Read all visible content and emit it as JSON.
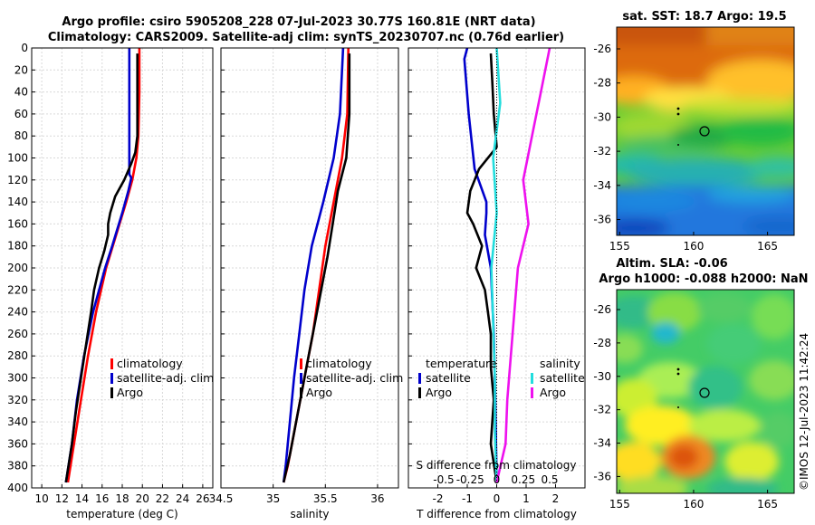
{
  "figure": {
    "title_line1": "Argo profile: csiro 5905208_228 07-Jul-2023 30.77S 160.81E (NRT data)",
    "title_line2": "Climatology: CARS2009. Satellite-adj clim: synTS_20230707.nc (0.76d earlier)",
    "watermark": "©IMOS 12-Jul-2023 11:42:24"
  },
  "colors": {
    "climatology": "#ff0000",
    "satellite": "#0000cc",
    "argo": "#000000",
    "sat_salinity": "#22dddd",
    "salinity_argo": "#ee11ee"
  },
  "chart_data": [
    {
      "type": "line",
      "name": "temperature",
      "xlabel": "temperature (deg C)",
      "xlim": [
        9,
        27
      ],
      "ylim": [
        0,
        400
      ],
      "xticks": [
        "10",
        "12",
        "14",
        "16",
        "18",
        "20",
        "22",
        "24",
        "26"
      ],
      "yticks": [
        "0",
        "20",
        "40",
        "60",
        "80",
        "100",
        "120",
        "140",
        "160",
        "180",
        "200",
        "220",
        "240",
        "260",
        "280",
        "300",
        "320",
        "340",
        "360",
        "380",
        "400"
      ],
      "legend": [
        "climatology",
        "satellite-adj. clim",
        "Argo"
      ],
      "series": [
        {
          "name": "climatology",
          "depth": [
            0,
            40,
            80,
            100,
            120,
            140,
            170,
            200,
            240,
            280,
            320,
            360,
            395
          ],
          "values": [
            19.7,
            19.7,
            19.6,
            19.4,
            19.0,
            18.4,
            17.4,
            16.4,
            15.4,
            14.6,
            13.9,
            13.2,
            12.6
          ]
        },
        {
          "name": "satellite-adj. clim",
          "depth": [
            0,
            115,
            118,
            130,
            150,
            180,
            200,
            240,
            280,
            320,
            360,
            395
          ],
          "values": [
            18.7,
            18.7,
            18.9,
            18.6,
            18.0,
            17.0,
            16.3,
            15.1,
            14.2,
            13.5,
            13.0,
            12.4
          ]
        },
        {
          "name": "Argo",
          "depth": [
            5,
            80,
            95,
            105,
            120,
            135,
            150,
            160,
            170,
            185,
            200,
            220,
            240,
            270,
            300,
            330,
            360,
            395
          ],
          "values": [
            19.5,
            19.5,
            19.3,
            18.9,
            18.2,
            17.3,
            16.8,
            16.6,
            16.6,
            16.2,
            15.7,
            15.2,
            14.9,
            14.4,
            13.9,
            13.4,
            13.0,
            12.4
          ]
        }
      ]
    },
    {
      "type": "line",
      "name": "salinity",
      "xlabel": "salinity",
      "xlim": [
        34.5,
        36.2
      ],
      "ylim": [
        0,
        400
      ],
      "xticks": [
        "34.5",
        "35",
        "35.5",
        "36"
      ],
      "legend": [
        "climatology",
        "satellite-adj. clim",
        "Argo"
      ],
      "series": [
        {
          "name": "climatology",
          "depth": [
            0,
            60,
            100,
            140,
            180,
            220,
            260,
            300,
            340,
            380,
            395
          ],
          "values": [
            35.72,
            35.71,
            35.66,
            35.58,
            35.5,
            35.44,
            35.38,
            35.3,
            35.22,
            35.14,
            35.1
          ]
        },
        {
          "name": "satellite-adj. clim",
          "depth": [
            0,
            60,
            100,
            140,
            180,
            220,
            260,
            300,
            340,
            380,
            395
          ],
          "values": [
            35.67,
            35.64,
            35.58,
            35.48,
            35.37,
            35.3,
            35.25,
            35.2,
            35.16,
            35.12,
            35.1
          ]
        },
        {
          "name": "Argo",
          "depth": [
            5,
            60,
            100,
            130,
            160,
            190,
            220,
            250,
            280,
            310,
            340,
            370,
            395
          ],
          "values": [
            35.73,
            35.73,
            35.7,
            35.62,
            35.57,
            35.52,
            35.46,
            35.4,
            35.34,
            35.28,
            35.22,
            35.16,
            35.1
          ]
        }
      ]
    },
    {
      "type": "line",
      "name": "difference",
      "xlabel": "T difference from climatology",
      "xlabel_top": "S difference from climatology",
      "xlim": [
        -3,
        3
      ],
      "ylim": [
        0,
        400
      ],
      "xticks": [
        "-2",
        "-1",
        "0",
        "1",
        "2"
      ],
      "xticks_top": [
        "-0.5",
        "-0.25",
        "0",
        "0.25",
        "0.5"
      ],
      "legend_headers": [
        "temperature",
        "salinity"
      ],
      "legend_temperature": [
        "satellite",
        "Argo"
      ],
      "legend_salinity": [
        "satellite",
        "Argo"
      ],
      "series": [
        {
          "name": "temperature satellite",
          "depth": [
            0,
            10,
            60,
            110,
            140,
            150,
            170,
            200,
            260,
            320,
            395
          ],
          "values": [
            -1.0,
            -1.1,
            -0.95,
            -0.75,
            -0.35,
            -0.35,
            -0.4,
            -0.2,
            -0.1,
            -0.05,
            0.0
          ]
        },
        {
          "name": "temperature Argo",
          "depth": [
            5,
            30,
            60,
            90,
            110,
            130,
            150,
            160,
            180,
            200,
            220,
            240,
            260,
            290,
            320,
            360,
            395
          ],
          "values": [
            -0.2,
            -0.15,
            -0.1,
            0.0,
            -0.6,
            -0.9,
            -1.0,
            -0.8,
            -0.5,
            -0.7,
            -0.4,
            -0.3,
            -0.2,
            -0.2,
            -0.1,
            -0.2,
            0.0
          ]
        },
        {
          "name": "salinity satellite",
          "depth": [
            0,
            50,
            100,
            150,
            200,
            250,
            300,
            350,
            395
          ],
          "values": [
            0.0,
            0.02,
            -0.02,
            0.0,
            -0.03,
            -0.02,
            -0.01,
            -0.01,
            0.0
          ]
        },
        {
          "name": "salinity Argo",
          "depth": [
            0,
            40,
            80,
            120,
            160,
            200,
            240,
            280,
            320,
            360,
            395
          ],
          "values": [
            0.3,
            0.25,
            0.2,
            0.15,
            0.18,
            0.12,
            0.1,
            0.08,
            0.06,
            0.05,
            0.0
          ]
        }
      ]
    },
    {
      "type": "heatmap",
      "name": "sst map",
      "title": "sat. SST: 18.7 Argo: 19.5",
      "xticks": [
        "155",
        "160",
        "165"
      ],
      "yticks": [
        "-26",
        "-28",
        "-30",
        "-32",
        "-34",
        "-36"
      ],
      "argo_position": [
        160.81,
        -30.77
      ]
    },
    {
      "type": "heatmap",
      "name": "sla map",
      "title": "Altim. SLA: -0.06",
      "subtitle": "Argo h1000: -0.088 h2000: NaN",
      "xticks": [
        "155",
        "160",
        "165"
      ],
      "yticks": [
        "-26",
        "-28",
        "-30",
        "-32",
        "-34",
        "-36"
      ],
      "argo_position": [
        160.81,
        -30.77
      ]
    }
  ]
}
